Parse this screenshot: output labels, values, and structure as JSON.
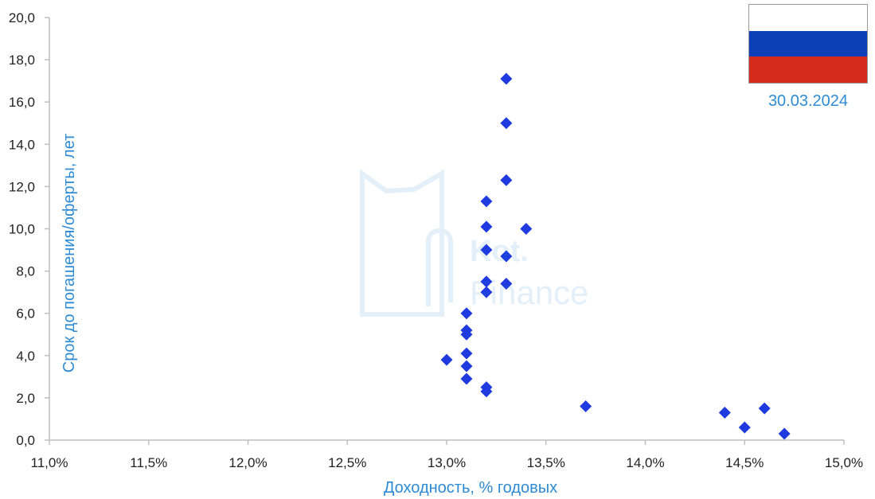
{
  "chart_data": {
    "type": "scatter",
    "xlabel": "Доходность, % годовых",
    "ylabel": "Срок до погашения/оферты, лет",
    "xlim": [
      11.0,
      15.0
    ],
    "ylim": [
      0.0,
      20.0
    ],
    "x_ticks": [
      "11,0%",
      "11,5%",
      "12,0%",
      "12,5%",
      "13,0%",
      "13,5%",
      "14,0%",
      "14,5%",
      "15,0%"
    ],
    "y_ticks": [
      "0,0",
      "2,0",
      "4,0",
      "6,0",
      "8,0",
      "10,0",
      "12,0",
      "14,0",
      "16,0",
      "18,0",
      "20,0"
    ],
    "grid": false,
    "marker_color": "#1F3BE0",
    "points": [
      {
        "x": 13.0,
        "y": 3.8
      },
      {
        "x": 13.1,
        "y": 6.0
      },
      {
        "x": 13.1,
        "y": 5.2
      },
      {
        "x": 13.1,
        "y": 5.0
      },
      {
        "x": 13.1,
        "y": 4.1
      },
      {
        "x": 13.1,
        "y": 3.5
      },
      {
        "x": 13.1,
        "y": 2.9
      },
      {
        "x": 13.2,
        "y": 11.3
      },
      {
        "x": 13.2,
        "y": 10.1
      },
      {
        "x": 13.2,
        "y": 9.0
      },
      {
        "x": 13.2,
        "y": 7.5
      },
      {
        "x": 13.2,
        "y": 7.0
      },
      {
        "x": 13.2,
        "y": 2.5
      },
      {
        "x": 13.2,
        "y": 2.3
      },
      {
        "x": 13.3,
        "y": 17.1
      },
      {
        "x": 13.3,
        "y": 15.0
      },
      {
        "x": 13.3,
        "y": 12.3
      },
      {
        "x": 13.3,
        "y": 8.7
      },
      {
        "x": 13.3,
        "y": 7.4
      },
      {
        "x": 13.4,
        "y": 10.0
      },
      {
        "x": 13.7,
        "y": 1.6
      },
      {
        "x": 14.4,
        "y": 1.3
      },
      {
        "x": 14.5,
        "y": 0.6
      },
      {
        "x": 14.6,
        "y": 1.5
      },
      {
        "x": 14.7,
        "y": 0.3
      }
    ]
  },
  "date": "30.03.2024",
  "flag_colors": [
    "#FFFFFF",
    "#0D3FB8",
    "#D52B1E"
  ],
  "watermark": {
    "line1": "Kot.",
    "line2": "Finance"
  }
}
